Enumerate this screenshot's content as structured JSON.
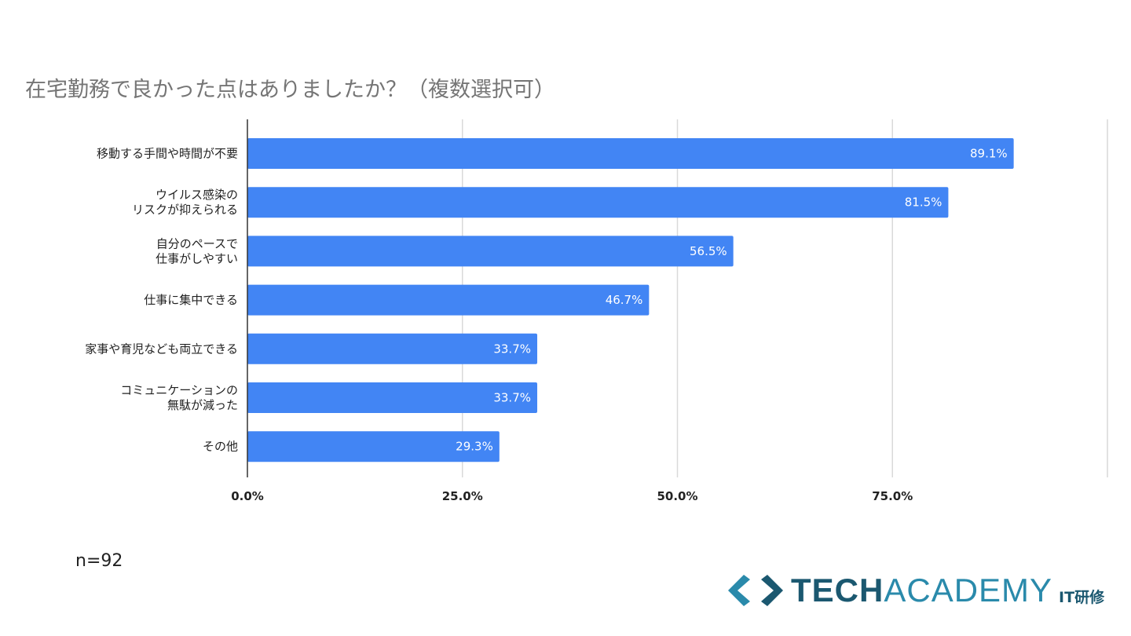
{
  "chart_data": {
    "type": "bar",
    "orientation": "horizontal",
    "title": "在宅勤務で良かった点はありましたか？（複数選択可）",
    "categories": [
      [
        "移動する手間や時間が不要"
      ],
      [
        "ウイルス感染の",
        "リスクが抑えられる"
      ],
      [
        "自分のペースで",
        "仕事がしやすい"
      ],
      [
        "仕事に集中できる"
      ],
      [
        "家事や育児なども両立できる"
      ],
      [
        "コミュニケーションの",
        "無駄が減った"
      ],
      [
        "その他"
      ]
    ],
    "values": [
      89.1,
      81.5,
      56.5,
      46.7,
      33.7,
      33.7,
      29.3
    ],
    "data_labels": [
      "89.1%",
      "81.5%",
      "56.5%",
      "46.7%",
      "33.7%",
      "33.7%",
      "29.3%"
    ],
    "xlim": [
      0,
      100
    ],
    "xticks": [
      0,
      25,
      50,
      75
    ],
    "xtick_labels": [
      "0.0%",
      "25.0%",
      "50.0%",
      "75.0%"
    ],
    "grid": true,
    "bar_color": "#4285f4",
    "note": "n=92"
  },
  "logo": {
    "text": "TECHACADEMY IT研修",
    "tech": "TECH",
    "academy": "ACADEMY",
    "suffix": "IT研修"
  }
}
